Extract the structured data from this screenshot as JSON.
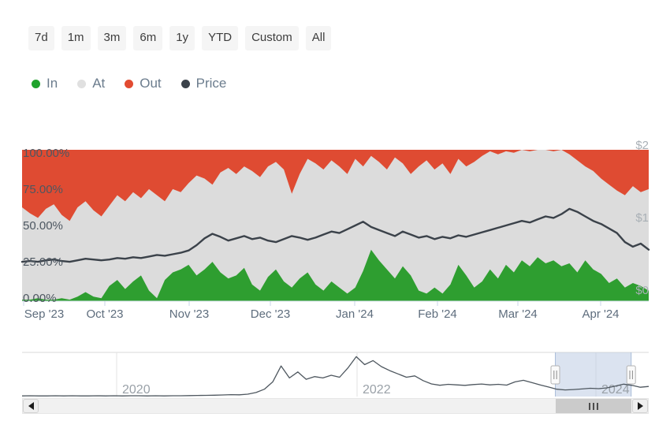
{
  "time_ranges": [
    "7d",
    "1m",
    "3m",
    "6m",
    "1y",
    "YTD",
    "Custom",
    "All"
  ],
  "legend": [
    {
      "label": "In",
      "color": "#1fa32c"
    },
    {
      "label": "At",
      "color": "#e0e0e0"
    },
    {
      "label": "Out",
      "color": "#e24b31"
    },
    {
      "label": "Price",
      "color": "#3b424a"
    }
  ],
  "chart_data": [
    {
      "type": "area",
      "stacking": "percent",
      "title": "In/Out of the Money over time",
      "x_tick_labels": [
        "Sep '23",
        "Oct '23",
        "Nov '23",
        "Dec '23",
        "Jan '24",
        "Feb '24",
        "Mar '24",
        "Apr '24"
      ],
      "y_left_tick_labels": [
        "100.00%",
        "75.00%",
        "50.00%",
        "25.00%",
        "0.00%"
      ],
      "y_right_tick_labels": [
        "$2",
        "$1",
        "$0"
      ],
      "ylim_percent": [
        0,
        100
      ],
      "ylim_price": [
        0,
        2
      ],
      "grid": false,
      "legend_position": "top",
      "series": [
        {
          "name": "In",
          "type": "area",
          "color": "#2e9e30",
          "unit": "%",
          "values": [
            1,
            1,
            2,
            1,
            1,
            2,
            1,
            3,
            6,
            3,
            2,
            10,
            14,
            8,
            13,
            17,
            7,
            2,
            14,
            19,
            21,
            24,
            17,
            21,
            26,
            19,
            15,
            17,
            22,
            11,
            7,
            16,
            21,
            13,
            9,
            15,
            19,
            11,
            7,
            13,
            9,
            5,
            9,
            20,
            34,
            27,
            21,
            15,
            23,
            17,
            7,
            5,
            9,
            5,
            11,
            24,
            17,
            9,
            13,
            21,
            15,
            24,
            19,
            27,
            23,
            29,
            25,
            27,
            23,
            25,
            19,
            27,
            21,
            18,
            12,
            15,
            9,
            12,
            10,
            7
          ]
        },
        {
          "name": "At",
          "type": "area",
          "color": "#dcdcdc",
          "unit": "%",
          "values": [
            61,
            57,
            53,
            60,
            63,
            55,
            52,
            59,
            60,
            57,
            54,
            53,
            56,
            58,
            59,
            51,
            67,
            68,
            52,
            55,
            51,
            54,
            66,
            60,
            51,
            66,
            73,
            67,
            67,
            75,
            75,
            73,
            71,
            74,
            62,
            69,
            75,
            80,
            80,
            80,
            80,
            79,
            85,
            69,
            62,
            65,
            66,
            80,
            68,
            67,
            82,
            88,
            78,
            86,
            73,
            70,
            72,
            83,
            83,
            78,
            82,
            75,
            79,
            73,
            76,
            71,
            75,
            72,
            77,
            72,
            74,
            62,
            65,
            63,
            65,
            58,
            61,
            64,
            62,
            67
          ]
        },
        {
          "name": "Out",
          "type": "area",
          "color": "#df4b32",
          "unit": "%",
          "values": [
            38,
            42,
            45,
            39,
            36,
            43,
            47,
            38,
            34,
            40,
            44,
            37,
            30,
            34,
            28,
            32,
            26,
            30,
            34,
            26,
            28,
            22,
            17,
            19,
            23,
            15,
            12,
            16,
            11,
            14,
            18,
            11,
            8,
            13,
            29,
            16,
            6,
            9,
            13,
            7,
            11,
            16,
            6,
            11,
            4,
            8,
            13,
            5,
            9,
            16,
            11,
            7,
            13,
            9,
            16,
            6,
            11,
            8,
            4,
            1,
            3,
            1,
            2,
            0,
            1,
            0,
            0,
            1,
            0,
            3,
            7,
            11,
            14,
            19,
            23,
            27,
            30,
            24,
            28,
            26
          ]
        },
        {
          "name": "Price",
          "type": "line",
          "color": "#3b424a",
          "unit": "$",
          "values": [
            0.52,
            0.53,
            0.52,
            0.54,
            0.55,
            0.53,
            0.52,
            0.54,
            0.56,
            0.55,
            0.54,
            0.55,
            0.57,
            0.56,
            0.58,
            0.57,
            0.59,
            0.61,
            0.6,
            0.62,
            0.64,
            0.67,
            0.74,
            0.83,
            0.89,
            0.85,
            0.8,
            0.83,
            0.86,
            0.82,
            0.84,
            0.8,
            0.78,
            0.82,
            0.86,
            0.84,
            0.81,
            0.84,
            0.88,
            0.92,
            0.9,
            0.95,
            1.0,
            1.05,
            0.98,
            0.94,
            0.9,
            0.86,
            0.92,
            0.88,
            0.84,
            0.86,
            0.82,
            0.85,
            0.83,
            0.87,
            0.85,
            0.88,
            0.91,
            0.94,
            0.97,
            1.0,
            1.03,
            1.06,
            1.04,
            1.08,
            1.12,
            1.1,
            1.15,
            1.22,
            1.18,
            1.12,
            1.06,
            1.02,
            0.96,
            0.9,
            0.78,
            0.72,
            0.76,
            0.68
          ]
        }
      ]
    },
    {
      "type": "line",
      "role": "navigator",
      "x_tick_labels": [
        "2020",
        "2022",
        "2024"
      ],
      "ylim": [
        0,
        3.2
      ],
      "line_color": "#4e575f",
      "selection": {
        "start_frac": 0.851,
        "end_frac": 0.972,
        "fill": "#b7c7e2"
      },
      "values": [
        0.05,
        0.06,
        0.05,
        0.05,
        0.06,
        0.05,
        0.06,
        0.05,
        0.05,
        0.06,
        0.05,
        0.06,
        0.05,
        0.06,
        0.06,
        0.05,
        0.06,
        0.05,
        0.06,
        0.06,
        0.07,
        0.08,
        0.09,
        0.1,
        0.12,
        0.14,
        0.13,
        0.18,
        0.3,
        0.55,
        1.1,
        2.3,
        1.4,
        1.85,
        1.3,
        1.5,
        1.4,
        1.6,
        1.45,
        2.15,
        3.0,
        2.4,
        2.7,
        2.25,
        1.95,
        1.7,
        1.45,
        1.55,
        1.2,
        0.95,
        0.85,
        0.92,
        0.88,
        0.84,
        0.9,
        0.94,
        0.88,
        0.92,
        0.86,
        1.1,
        1.22,
        1.05,
        0.88,
        0.72,
        0.55,
        0.5,
        0.53,
        0.57,
        0.62,
        0.59,
        0.65,
        0.78,
        0.93,
        0.84,
        0.7,
        0.76
      ]
    }
  ],
  "scrollbar": {
    "left_arrow_icon": "left-triangle",
    "right_arrow_icon": "right-triangle",
    "grip_icon": "three-vertical-bars"
  }
}
